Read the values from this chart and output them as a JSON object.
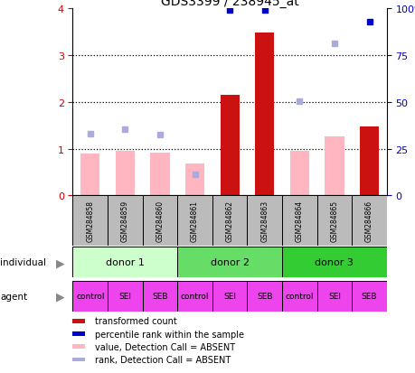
{
  "title": "GDS3399 / 238945_at",
  "samples": [
    "GSM284858",
    "GSM284859",
    "GSM284860",
    "GSM284861",
    "GSM284862",
    "GSM284863",
    "GSM284864",
    "GSM284865",
    "GSM284866"
  ],
  "transformed_count": [
    null,
    null,
    null,
    null,
    2.15,
    3.48,
    null,
    null,
    1.47
  ],
  "transformed_count_absent": [
    0.9,
    0.95,
    0.92,
    0.68,
    null,
    null,
    0.95,
    1.27,
    null
  ],
  "percentile_rank": [
    null,
    null,
    null,
    null,
    3.97,
    3.97,
    null,
    null,
    3.72
  ],
  "percentile_rank_absent": [
    1.33,
    1.42,
    1.3,
    0.45,
    null,
    null,
    2.02,
    3.25,
    null
  ],
  "ylim": [
    0,
    4
  ],
  "yticks_left": [
    0,
    1,
    2,
    3,
    4
  ],
  "yticks_right": [
    0,
    25,
    50,
    75,
    100
  ],
  "donors": [
    {
      "label": "donor 1",
      "start": 0,
      "end": 3,
      "color": "#CCFFCC"
    },
    {
      "label": "donor 2",
      "start": 3,
      "end": 6,
      "color": "#66DD66"
    },
    {
      "label": "donor 3",
      "start": 6,
      "end": 9,
      "color": "#33CC33"
    }
  ],
  "agents": [
    "control",
    "SEI",
    "SEB",
    "control",
    "SEI",
    "SEB",
    "control",
    "SEI",
    "SEB"
  ],
  "agent_color": "#EE44EE",
  "bar_color_red": "#CC1111",
  "bar_color_pink": "#FFB6C1",
  "scatter_blue_dark": "#0000CC",
  "scatter_blue_light": "#AAAADD",
  "bg_gray": "#BBBBBB",
  "legend_items": [
    {
      "label": "transformed count",
      "color": "#CC1111"
    },
    {
      "label": "percentile rank within the sample",
      "color": "#0000CC"
    },
    {
      "label": "value, Detection Call = ABSENT",
      "color": "#FFB6C1"
    },
    {
      "label": "rank, Detection Call = ABSENT",
      "color": "#AAAADD"
    }
  ],
  "ylabel_left_color": "#CC0000",
  "ylabel_right_color": "#0000CC"
}
